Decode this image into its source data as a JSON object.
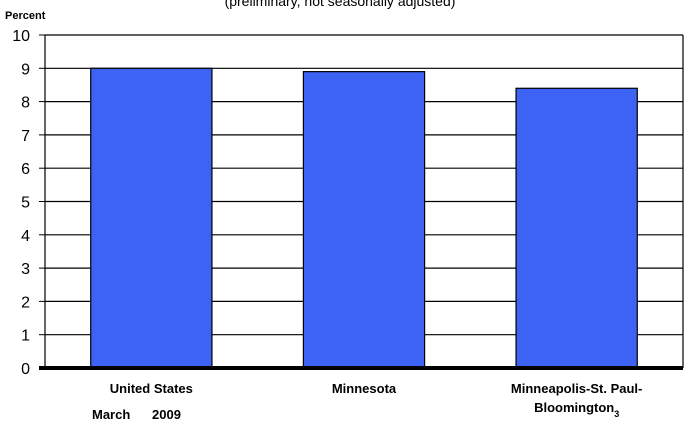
{
  "chart_data": {
    "type": "bar",
    "subtitle": "(preliminary, not seasonally adjusted)",
    "ylabel": "Percent",
    "period": {
      "month": "March",
      "year": "2009"
    },
    "categories": [
      {
        "name": "United States",
        "lines": [
          "United States"
        ],
        "footnote": ""
      },
      {
        "name": "Minnesota",
        "lines": [
          "Minnesota"
        ],
        "footnote": ""
      },
      {
        "name": "Minneapolis-St. Paul-Bloomington",
        "lines": [
          "Minneapolis-St. Paul-",
          "Bloomington"
        ],
        "footnote": "3"
      }
    ],
    "values": [
      9.0,
      8.9,
      8.4
    ],
    "ylim": [
      0,
      10
    ],
    "yticks": [
      "0",
      "1",
      "2",
      "3",
      "4",
      "5",
      "6",
      "7",
      "8",
      "9",
      "10"
    ],
    "grid": true,
    "colors": {
      "bar": "#3d63f5",
      "bar_edge": "#000000",
      "grid": "#000000"
    }
  }
}
